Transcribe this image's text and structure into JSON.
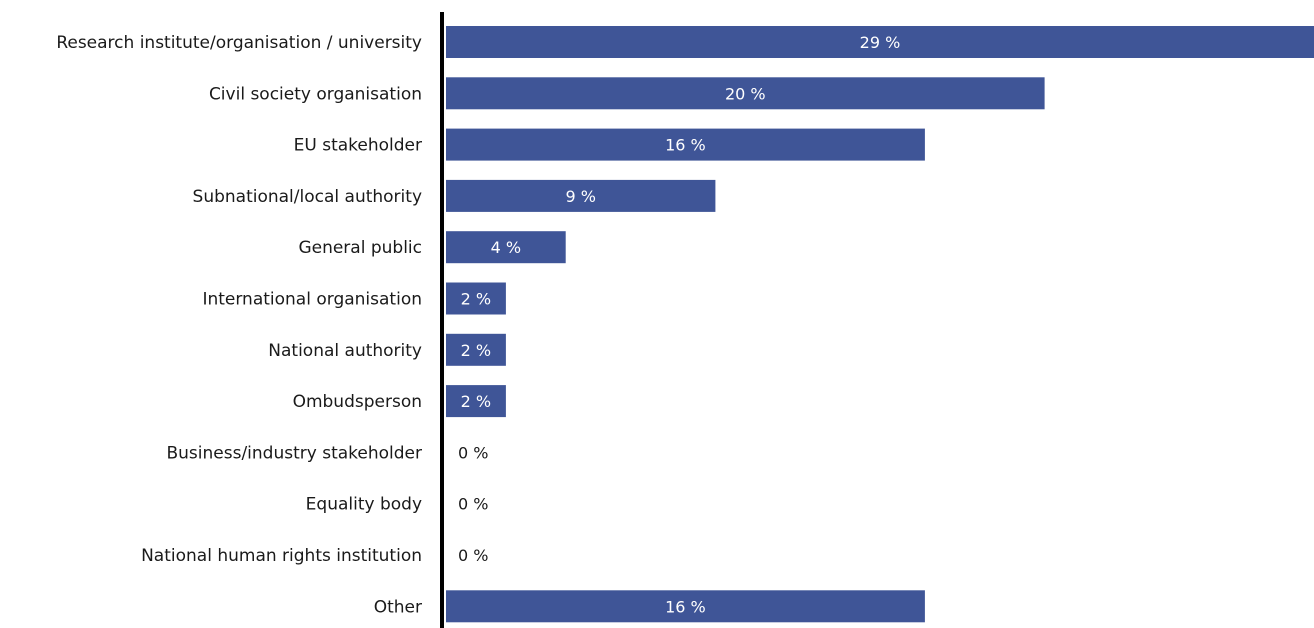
{
  "chart_data": {
    "type": "bar",
    "orientation": "horizontal",
    "categories": [
      "Research institute/organisation / university",
      "Civil society organisation",
      "EU stakeholder",
      "Subnational/local authority",
      "General public",
      "International organisation",
      "National authority",
      "Ombudsperson",
      "Business/industry stakeholder",
      "Equality body",
      "National human rights institution",
      "Other"
    ],
    "values": [
      29,
      20,
      16,
      9,
      4,
      2,
      2,
      2,
      0,
      0,
      0,
      16
    ],
    "data_labels": [
      "29 %",
      "20 %",
      "16 %",
      "9 %",
      "4 %",
      "2 %",
      "2 %",
      "2 %",
      "0 %",
      "0 %",
      "0 %",
      "16 %"
    ],
    "title": "",
    "xlabel": "",
    "ylabel": "",
    "xlim": [
      0,
      29
    ],
    "grid": false,
    "legend": "none",
    "bar_color": "#3f5597",
    "axis_color": "#000000",
    "label_color_inside": "#ffffff",
    "label_color_outside": "#1a1a1a"
  }
}
